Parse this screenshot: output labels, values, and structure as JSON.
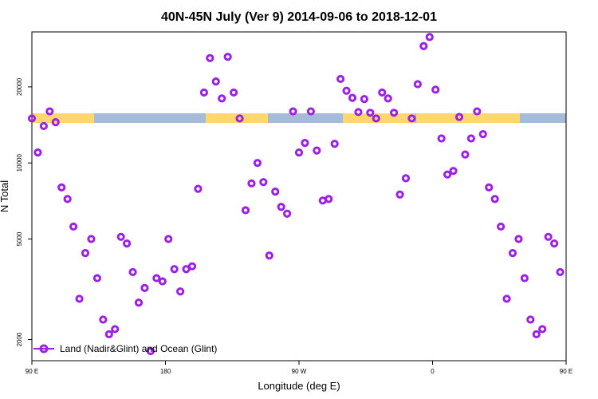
{
  "chart_data": {
    "type": "scatter",
    "title": "40N-45N July (Ver 9)   2014-09-06 to 2018-12-01",
    "xlabel": "Longitude (deg E)",
    "ylabel": "N Total",
    "xlim": [
      90,
      450
    ],
    "ylim": [
      1650,
      33000
    ],
    "y_scale": "log",
    "x_ticks": [
      {
        "value": 90,
        "label": "90 E"
      },
      {
        "value": 180,
        "label": "180"
      },
      {
        "value": 270,
        "label": "90 W"
      },
      {
        "value": 360,
        "label": "0"
      },
      {
        "value": 450,
        "label": "90 E"
      },
      {
        "value": 540,
        "label": "180"
      }
    ],
    "y_ticks": [
      {
        "value": 2000,
        "label": "2000"
      },
      {
        "value": 5000,
        "label": "5000"
      },
      {
        "value": 10000,
        "label": "10000"
      },
      {
        "value": 20000,
        "label": "20000"
      }
    ],
    "grid": false,
    "legend": {
      "position": "bottom-left",
      "entries": [
        "Land (Nadir&Glint) and Ocean (Glint)"
      ]
    },
    "colors": {
      "marker": "#9b20e8",
      "land": "#ffd76e",
      "ocean": "#a4bcd9"
    },
    "series": [
      {
        "name": "Land (Nadir&Glint) and Ocean (Glint)",
        "points": [
          [
            90,
            15000
          ],
          [
            94,
            11000
          ],
          [
            98,
            14000
          ],
          [
            102,
            16000
          ],
          [
            106,
            14500
          ],
          [
            110,
            8000
          ],
          [
            114,
            7200
          ],
          [
            118,
            5600
          ],
          [
            122,
            2900
          ],
          [
            126,
            4400
          ],
          [
            130,
            5000
          ],
          [
            134,
            3500
          ],
          [
            138,
            2400
          ],
          [
            142,
            2100
          ],
          [
            146,
            2200
          ],
          [
            150,
            5100
          ],
          [
            154,
            4800
          ],
          [
            158,
            3700
          ],
          [
            162,
            2800
          ],
          [
            166,
            3200
          ],
          [
            170,
            1800
          ],
          [
            174,
            3500
          ],
          [
            178,
            3400
          ],
          [
            182,
            5000
          ],
          [
            186,
            3800
          ],
          [
            190,
            3100
          ],
          [
            194,
            3800
          ],
          [
            198,
            3900
          ],
          [
            202,
            7900
          ],
          [
            206,
            19000
          ],
          [
            210,
            26000
          ],
          [
            214,
            21000
          ],
          [
            218,
            18000
          ],
          [
            222,
            26300
          ],
          [
            226,
            19000
          ],
          [
            230,
            15000
          ],
          [
            234,
            6500
          ],
          [
            238,
            8300
          ],
          [
            242,
            10000
          ],
          [
            246,
            8400
          ],
          [
            250,
            4300
          ],
          [
            254,
            7700
          ],
          [
            258,
            6700
          ],
          [
            262,
            6300
          ],
          [
            266,
            16000
          ],
          [
            270,
            11000
          ],
          [
            274,
            12000
          ],
          [
            278,
            16000
          ],
          [
            282,
            11200
          ],
          [
            286,
            7100
          ],
          [
            290,
            7200
          ],
          [
            294,
            11900
          ],
          [
            298,
            21500
          ],
          [
            302,
            19300
          ],
          [
            306,
            18100
          ],
          [
            310,
            15900
          ],
          [
            314,
            17900
          ],
          [
            318,
            15800
          ],
          [
            322,
            15000
          ],
          [
            326,
            19000
          ],
          [
            330,
            18000
          ],
          [
            334,
            15800
          ],
          [
            338,
            7500
          ],
          [
            342,
            8700
          ],
          [
            346,
            15000
          ],
          [
            350,
            20500
          ],
          [
            354,
            29000
          ],
          [
            358,
            31500
          ],
          [
            362,
            19500
          ],
          [
            366,
            12500
          ],
          [
            370,
            9000
          ],
          [
            374,
            9300
          ],
          [
            378,
            15200
          ],
          [
            382,
            10800
          ],
          [
            386,
            12500
          ],
          [
            390,
            16000
          ],
          [
            394,
            13000
          ],
          [
            398,
            8000
          ],
          [
            402,
            7200
          ],
          [
            406,
            5600
          ],
          [
            410,
            2900
          ],
          [
            414,
            4400
          ],
          [
            418,
            5000
          ],
          [
            422,
            3500
          ],
          [
            426,
            2400
          ],
          [
            430,
            2100
          ],
          [
            434,
            2200
          ],
          [
            438,
            5100
          ],
          [
            442,
            4800
          ],
          [
            446,
            3700
          ]
        ]
      }
    ]
  }
}
